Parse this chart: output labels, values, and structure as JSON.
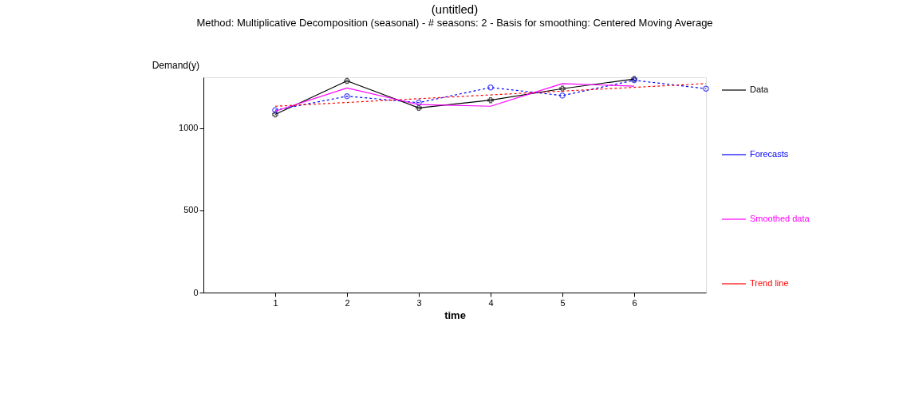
{
  "chart_data": {
    "type": "line",
    "title": "(untitled)",
    "subtitle": "Method: Multiplicative Decomposition (seasonal) - # seasons:  2 - Basis for smoothing: Centered Moving Average",
    "xlabel": "time",
    "ylabel": "Demand(y)",
    "xlim": [
      0,
      7
    ],
    "xticks": [
      1,
      2,
      3,
      4,
      5,
      6
    ],
    "ylim": [
      0,
      1310
    ],
    "yticks": [
      0,
      500,
      1000
    ],
    "grid": false,
    "legend": "right",
    "series": [
      {
        "name": "Data",
        "color": "#000000",
        "marker": "cross",
        "line_style": "solid",
        "x": [
          1,
          2,
          3,
          4,
          5,
          6
        ],
        "values": [
          1084,
          1288,
          1124,
          1171,
          1241,
          1300
        ]
      },
      {
        "name": "Forecasts",
        "color": "#0000ff",
        "marker": "circle",
        "line_style": "dashed",
        "x": [
          1,
          2,
          3,
          4,
          5,
          6,
          7
        ],
        "values": [
          1110,
          1195,
          1156,
          1248,
          1199,
          1292,
          1241
        ]
      },
      {
        "name": "Smoothed data",
        "color": "#ff00ff",
        "marker": "none",
        "line_style": "solid",
        "x": [
          1,
          2,
          3,
          4,
          5,
          6
        ],
        "values": [
          1104,
          1245,
          1144,
          1134,
          1272,
          1256
        ]
      },
      {
        "name": "Trend line",
        "color": "#ff0000",
        "marker": "none",
        "line_style": "dashed",
        "x": [
          1,
          2,
          3,
          4,
          5,
          6,
          7
        ],
        "values": [
          1134,
          1157,
          1180,
          1203,
          1226,
          1249,
          1272
        ]
      }
    ]
  }
}
